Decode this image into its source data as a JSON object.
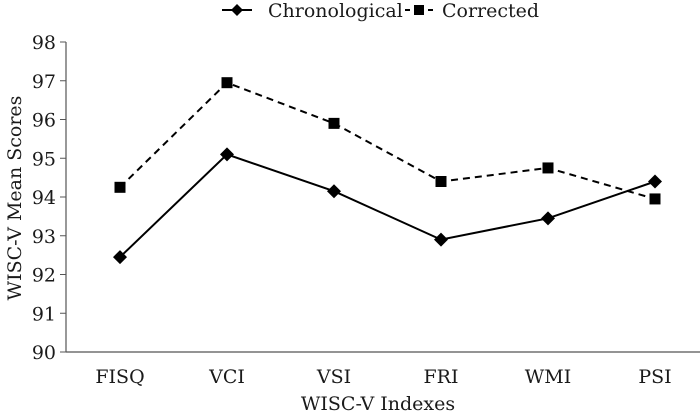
{
  "chart_data": {
    "type": "line",
    "title": "",
    "xlabel": "WISC-V Indexes",
    "ylabel": "WISC-V Mean Scores",
    "categories": [
      "FISQ",
      "VCI",
      "VSI",
      "FRI",
      "WMI",
      "PSI"
    ],
    "ylim": [
      90,
      98
    ],
    "yticks": [
      90,
      91,
      92,
      93,
      94,
      95,
      96,
      97,
      98
    ],
    "grid": false,
    "legend_position": "top-center",
    "series": [
      {
        "name": "Chronological",
        "marker": "diamond",
        "line_style": "solid",
        "color": "#000000",
        "values": [
          92.45,
          95.1,
          94.15,
          92.9,
          93.45,
          94.4
        ]
      },
      {
        "name": "Corrected",
        "marker": "square",
        "line_style": "dashed",
        "color": "#000000",
        "values": [
          94.25,
          96.95,
          95.9,
          94.4,
          94.75,
          93.95
        ]
      }
    ]
  }
}
